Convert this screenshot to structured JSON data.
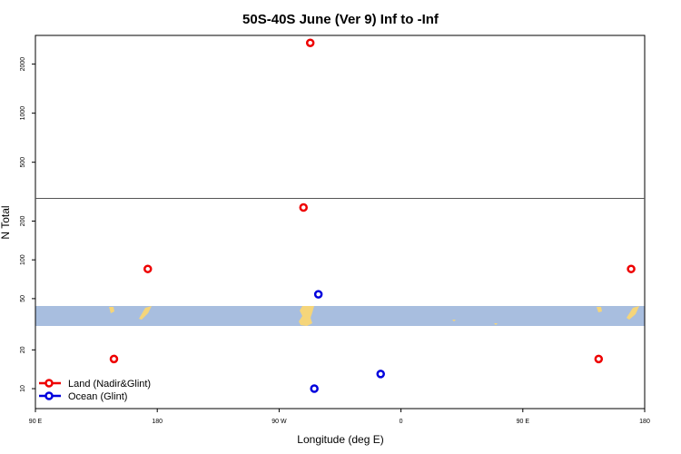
{
  "chart_data": {
    "type": "scatter",
    "title": "50S-40S June (Ver 9)   Inf to -Inf",
    "xlabel": "Longitude (deg E)",
    "ylabel": "N Total",
    "x_axis": {
      "range_deg_east": [
        90,
        450
      ],
      "ticks": [
        {
          "value": 90,
          "label": "90 E"
        },
        {
          "value": 180,
          "label": "180"
        },
        {
          "value": 270,
          "label": "90 W"
        },
        {
          "value": 360,
          "label": "0"
        },
        {
          "value": 450,
          "label": "90 E"
        },
        {
          "value": 540,
          "label": "180"
        }
      ],
      "display_range": [
        90,
        540
      ]
    },
    "y_axis": {
      "scale": "broken-log",
      "lower_panel": {
        "range": [
          7,
          300
        ],
        "ticks": [
          {
            "value": 10,
            "label": "10"
          },
          {
            "value": 20,
            "label": "20"
          },
          {
            "value": 50,
            "label": "50"
          },
          {
            "value": 100,
            "label": "100"
          },
          {
            "value": 200,
            "label": "200"
          }
        ]
      },
      "upper_panel": {
        "range": [
          300,
          3000
        ],
        "ticks": [
          {
            "value": 500,
            "label": "500"
          },
          {
            "value": 1000,
            "label": "1000"
          },
          {
            "value": 2000,
            "label": "2000"
          }
        ]
      }
    },
    "series": [
      {
        "name": "Land (Nadir&Glint)",
        "color": "#ee0000",
        "points": [
          {
            "x": 148,
            "y": 17
          },
          {
            "x": 173,
            "y": 85
          },
          {
            "x": 288,
            "y": 255
          },
          {
            "x": 293,
            "y": 2700
          },
          {
            "x": 506,
            "y": 17
          },
          {
            "x": 530,
            "y": 85
          }
        ]
      },
      {
        "name": "Ocean (Glint)",
        "color": "#0000dd",
        "points": [
          {
            "x": 296,
            "y": 10
          },
          {
            "x": 299,
            "y": 54
          },
          {
            "x": 345,
            "y": 13
          }
        ]
      }
    ],
    "legend_position": "bottom-left",
    "latitude_band": {
      "color": "#a8bedf",
      "land_color": "#f5d57a"
    }
  }
}
